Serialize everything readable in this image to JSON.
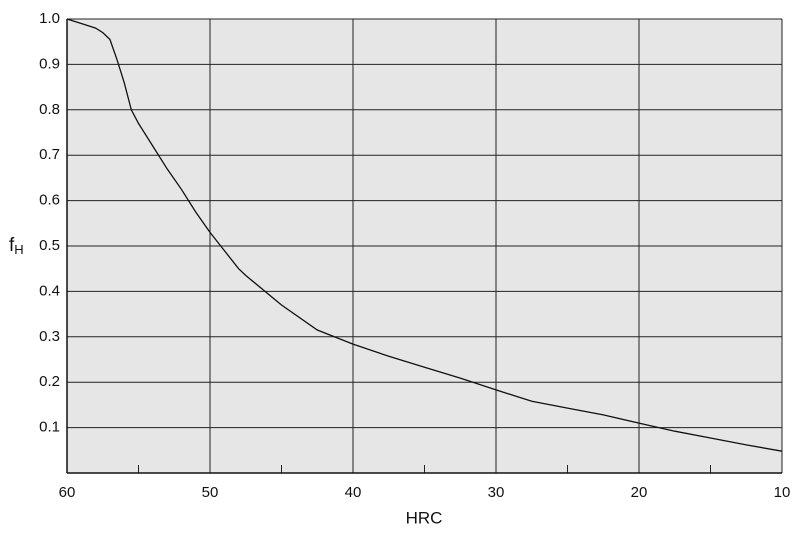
{
  "chart_data": {
    "type": "line",
    "xlabel": "HRC",
    "ylabel": "f",
    "ylabel_subscript": "H",
    "x": [
      60,
      59,
      58,
      57.5,
      57,
      56.5,
      56,
      55.5,
      55,
      54,
      53,
      52,
      51,
      50,
      49,
      48,
      47.5,
      45,
      42.5,
      40,
      37.5,
      35,
      32.5,
      30,
      27.5,
      25,
      22.5,
      20,
      17.5,
      15,
      12.5,
      10
    ],
    "series": [
      {
        "color": "#111111",
        "values": [
          1.0,
          0.99,
          0.98,
          0.97,
          0.955,
          0.91,
          0.86,
          0.8,
          0.77,
          0.72,
          0.67,
          0.625,
          0.575,
          0.53,
          0.49,
          0.45,
          0.435,
          0.37,
          0.315,
          0.284,
          0.257,
          0.233,
          0.209,
          0.183,
          0.158,
          0.143,
          0.128,
          0.11,
          0.092,
          0.077,
          0.062,
          0.048
        ]
      }
    ],
    "xlim": [
      60,
      10
    ],
    "xticks": [
      60,
      50,
      40,
      30,
      20,
      10
    ],
    "xminorticks": [
      55,
      45,
      35,
      25,
      15
    ],
    "ylim": [
      0,
      1
    ],
    "yticks": [
      0.1,
      0.2,
      0.3,
      0.4,
      0.5,
      0.6,
      0.7,
      0.8,
      0.9,
      {
        "value": 1,
        "label": "1.0"
      }
    ],
    "grid": true,
    "background": "#e6e6e6"
  }
}
